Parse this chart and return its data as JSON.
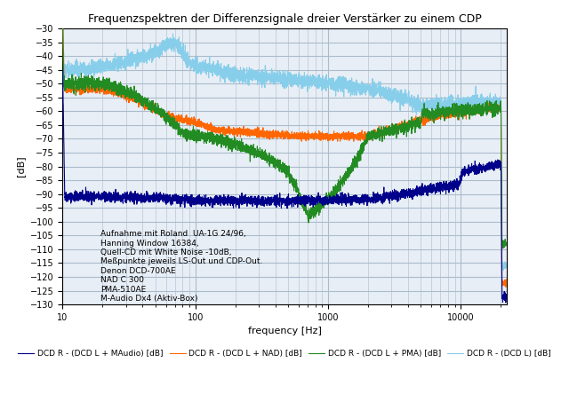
{
  "title": "Frequenzspektren der Differenzsignale dreier Verstärker zu einem CDP",
  "xlabel": "frequency [Hz]",
  "ylabel": "[dB]",
  "xlim": [
    10,
    22000
  ],
  "ylim": [
    -130,
    -30
  ],
  "yticks": [
    -30,
    -35,
    -40,
    -45,
    -50,
    -55,
    -60,
    -65,
    -70,
    -75,
    -80,
    -85,
    -90,
    -95,
    -100,
    -105,
    -110,
    -115,
    -120,
    -125,
    -130
  ],
  "annotation": "Aufnahme mit Roland  UA-1G 24/96,\nHanning Window 16384,\nQuell-CD mit White Noise -10dB,\nMeßpunkte jeweils LS-Out und CDP-Out.\nDenon DCD-700AE\nNAD C 300\nPMA-510AE\nM-Audio Dx4 (Aktiv-Box)",
  "colors": {
    "navy": "#00008B",
    "orange": "#FF6600",
    "green": "#228B22",
    "lightblue": "#87CEEB"
  },
  "legend_labels": [
    "DCD R - (DCD L) [dB]",
    "DCD R - (DCD L + NAD) [dB]",
    "DCD R - (DCD L + PMA) [dB]",
    "DCD R - (DCD L + MAudio) [dB]"
  ],
  "background_color": "#FFFFFF",
  "grid_color": "#AABBCC",
  "axes_bg_color": "#E8EEF5"
}
